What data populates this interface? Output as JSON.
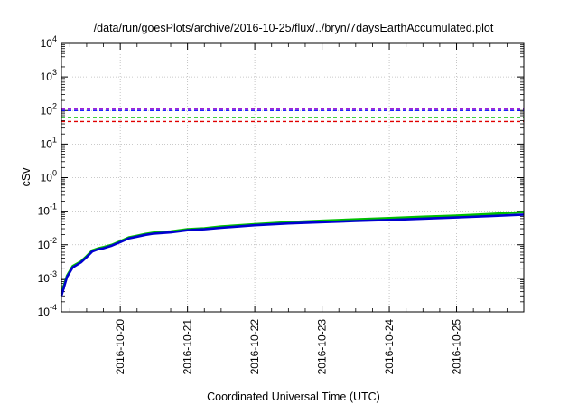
{
  "chart_data": {
    "type": "line",
    "title": "/data/run/goesPlots/archive/2016-10-25/flux/../bryn/7daysEarthAccumulated.plot",
    "xlabel": "Coordinated Universal Time (UTC)",
    "ylabel": "cSv",
    "y_scale": "log",
    "ylim": [
      0.0001,
      10000
    ],
    "xlim": [
      "2016-10-19T03:00",
      "2016-10-26T00:00"
    ],
    "grid": true,
    "y_ticks": [
      {
        "mantissa": "10",
        "exp": "-4",
        "value": 0.0001
      },
      {
        "mantissa": "10",
        "exp": "-3",
        "value": 0.001
      },
      {
        "mantissa": "10",
        "exp": "-2",
        "value": 0.01
      },
      {
        "mantissa": "10",
        "exp": "-1",
        "value": 0.1
      },
      {
        "mantissa": "10",
        "exp": "0",
        "value": 1
      },
      {
        "mantissa": "10",
        "exp": "1",
        "value": 10
      },
      {
        "mantissa": "10",
        "exp": "2",
        "value": 100
      },
      {
        "mantissa": "10",
        "exp": "3",
        "value": 1000
      },
      {
        "mantissa": "10",
        "exp": "4",
        "value": 10000
      }
    ],
    "x_ticks": [
      "2016-10-20",
      "2016-10-21",
      "2016-10-22",
      "2016-10-23",
      "2016-10-24",
      "2016-10-25"
    ],
    "reference_lines": [
      {
        "value": 110,
        "color": "#9400d3",
        "style": "dashed"
      },
      {
        "value": 100,
        "color": "#0000ff",
        "style": "dashed"
      },
      {
        "value": 62,
        "color": "#00c000",
        "style": "dashed"
      },
      {
        "value": 47,
        "color": "#e00000",
        "style": "dashed"
      }
    ],
    "series": [
      {
        "color": "#00c000",
        "x": [
          "2016-10-19T03:00",
          "2016-10-19T05:00",
          "2016-10-19T07:00",
          "2016-10-19T10:00",
          "2016-10-19T12:00",
          "2016-10-19T14:00",
          "2016-10-19T16:00",
          "2016-10-19T18:00",
          "2016-10-19T21:00",
          "2016-10-20T00:00",
          "2016-10-20T03:00",
          "2016-10-20T06:00",
          "2016-10-20T09:00",
          "2016-10-20T12:00",
          "2016-10-20T18:00",
          "2016-10-21T00:00",
          "2016-10-21T06:00",
          "2016-10-21T12:00",
          "2016-10-22T00:00",
          "2016-10-22T12:00",
          "2016-10-23T00:00",
          "2016-10-23T12:00",
          "2016-10-24T00:00",
          "2016-10-24T12:00",
          "2016-10-25T00:00",
          "2016-10-25T12:00",
          "2016-10-26T00:00"
        ],
        "values": [
          0.00035,
          0.0012,
          0.0023,
          0.0032,
          0.0046,
          0.0068,
          0.0078,
          0.0085,
          0.01,
          0.0128,
          0.0165,
          0.0185,
          0.021,
          0.023,
          0.025,
          0.029,
          0.031,
          0.035,
          0.041,
          0.047,
          0.052,
          0.057,
          0.062,
          0.068,
          0.074,
          0.082,
          0.094
        ]
      },
      {
        "color": "#0000d0",
        "x": [
          "2016-10-19T03:00",
          "2016-10-19T05:00",
          "2016-10-19T07:00",
          "2016-10-19T10:00",
          "2016-10-19T12:00",
          "2016-10-19T14:00",
          "2016-10-19T16:00",
          "2016-10-19T18:00",
          "2016-10-19T21:00",
          "2016-10-20T00:00",
          "2016-10-20T03:00",
          "2016-10-20T06:00",
          "2016-10-20T09:00",
          "2016-10-20T12:00",
          "2016-10-20T18:00",
          "2016-10-21T00:00",
          "2016-10-21T06:00",
          "2016-10-21T12:00",
          "2016-10-22T00:00",
          "2016-10-22T12:00",
          "2016-10-23T00:00",
          "2016-10-23T12:00",
          "2016-10-24T00:00",
          "2016-10-24T12:00",
          "2016-10-25T00:00",
          "2016-10-25T12:00",
          "2016-10-26T00:00"
        ],
        "values": [
          0.0003,
          0.0011,
          0.0021,
          0.003,
          0.0043,
          0.0063,
          0.0073,
          0.0079,
          0.0094,
          0.012,
          0.0155,
          0.0174,
          0.0197,
          0.0215,
          0.0233,
          0.027,
          0.029,
          0.032,
          0.038,
          0.043,
          0.047,
          0.051,
          0.055,
          0.06,
          0.065,
          0.071,
          0.079
        ]
      }
    ]
  }
}
